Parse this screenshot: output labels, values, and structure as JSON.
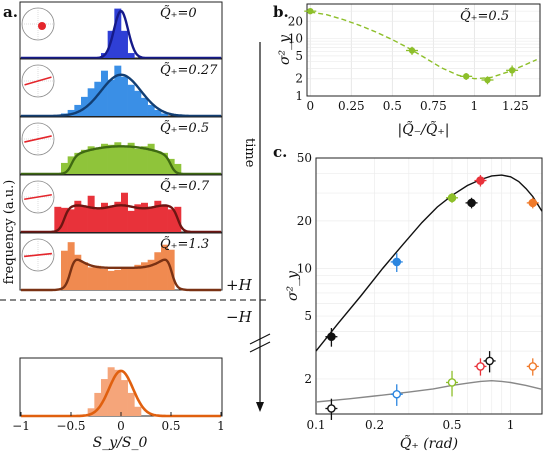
{
  "panel_labels": {
    "a": "a.",
    "b": "b.",
    "c": "c."
  },
  "panel_a": {
    "ylabel": "frequency (a.u.)",
    "xlabel": "S_y/S_0",
    "xticks": [
      "−1",
      "−0.5",
      "0",
      "0.5",
      "1"
    ],
    "time_label": "time",
    "plus_h": "+H",
    "minus_h": "−H",
    "series": [
      {
        "q": "Q̃₊=0",
        "color": "#2f3fd6",
        "curve": "#151a8a",
        "hist": [
          0,
          0,
          0,
          0,
          0,
          0,
          0,
          0,
          0,
          0,
          0,
          0,
          0.1,
          0.55,
          1.0,
          0.55,
          0.1,
          0,
          0,
          0,
          0,
          0,
          0,
          0,
          0,
          0,
          0,
          0,
          0,
          0
        ],
        "curve_type": "gauss",
        "sigma": 0.07,
        "amp": 0.95
      },
      {
        "q": "Q̃₊=0.27",
        "color": "#3a8fe6",
        "curve": "#123e73",
        "hist": [
          0,
          0,
          0,
          0,
          0,
          0,
          0.05,
          0.12,
          0.22,
          0.38,
          0.55,
          0.68,
          0.9,
          0.72,
          1.0,
          0.78,
          0.62,
          0.5,
          0.36,
          0.22,
          0.12,
          0.05,
          0,
          0,
          0,
          0,
          0,
          0,
          0,
          0
        ],
        "curve_type": "gauss",
        "sigma": 0.2,
        "amp": 0.82
      },
      {
        "q": "Q̃₊=0.5",
        "color": "#8fc43a",
        "curve": "#3f6a12",
        "hist": [
          0,
          0,
          0,
          0,
          0,
          0,
          0.22,
          0.35,
          0.42,
          0.48,
          0.55,
          0.52,
          0.6,
          0.58,
          0.63,
          0.55,
          0.62,
          0.5,
          0.55,
          0.6,
          0.45,
          0.42,
          0.3,
          0.2,
          0,
          0,
          0,
          0,
          0,
          0
        ],
        "curve_type": "dome",
        "width": 0.5,
        "amp": 0.55
      },
      {
        "q": "Q̃₊=0.7",
        "color": "#e8323a",
        "curve": "#6e1512",
        "hist": [
          0,
          0,
          0,
          0,
          0,
          0.5,
          0.48,
          0.45,
          0.62,
          0.5,
          0.72,
          0.45,
          0.58,
          0.5,
          0.6,
          0.78,
          0.42,
          0.55,
          0.58,
          0.5,
          0.62,
          0.52,
          0.45,
          0.5,
          0,
          0,
          0,
          0,
          0,
          0
        ],
        "curve_type": "flat",
        "width": 0.57,
        "amp": 0.5
      },
      {
        "q": "Q̃₊=1.3",
        "color": "#f08a50",
        "curve": "#7a3214",
        "hist": [
          0,
          0,
          0,
          0,
          0,
          0,
          0.78,
          0.95,
          0.7,
          0.55,
          0.45,
          0.48,
          0.42,
          0.38,
          0.4,
          0.45,
          0.42,
          0.5,
          0.55,
          0.6,
          0.75,
          0.9,
          0.8,
          0,
          0,
          0,
          0,
          0,
          0,
          0
        ],
        "curve_type": "horns",
        "width": 0.5,
        "amp": 0.8
      }
    ],
    "bottom": {
      "color": "#f5a57a",
      "curve": "#e0600f",
      "hist": [
        0,
        0,
        0,
        0,
        0,
        0,
        0,
        0,
        0,
        0,
        0.15,
        0.45,
        0.72,
        0.95,
        0.9,
        0.7,
        0.45,
        0.18,
        0,
        0,
        0,
        0,
        0,
        0,
        0,
        0,
        0,
        0,
        0,
        0
      ],
      "sigma": 0.12,
      "amp": 0.88
    }
  },
  "chart_data": [
    {
      "type": "scatter",
      "panel": "b",
      "annotation": "Q̃₊=0.5",
      "xlabel": "|Q̃₋/Q̃₊|",
      "ylabel": "σ²_y",
      "xlim": [
        -0.02,
        1.4
      ],
      "ylim": [
        1,
        40
      ],
      "yscale": "log",
      "grid": true,
      "xticks": [
        "0",
        "0.25",
        "0.5",
        "0.75",
        "1",
        "1.25"
      ],
      "yticks": [
        "1",
        "2",
        "5",
        "10",
        "20"
      ],
      "color": "#8dbf2a",
      "points": [
        {
          "x": 0.0,
          "y": 30.0,
          "err": 3.0
        },
        {
          "x": 0.62,
          "y": 6.2,
          "err": 1.0
        },
        {
          "x": 0.95,
          "y": 2.2,
          "err": 0.3
        },
        {
          "x": 1.08,
          "y": 1.9,
          "err": 0.3
        },
        {
          "x": 1.23,
          "y": 2.8,
          "err": 0.6
        }
      ],
      "fit": [
        [
          0,
          29
        ],
        [
          0.1,
          26
        ],
        [
          0.2,
          21.5
        ],
        [
          0.3,
          17
        ],
        [
          0.4,
          13
        ],
        [
          0.5,
          9.6
        ],
        [
          0.6,
          6.8
        ],
        [
          0.7,
          4.6
        ],
        [
          0.8,
          3.1
        ],
        [
          0.9,
          2.3
        ],
        [
          1.0,
          2.0
        ],
        [
          1.1,
          2.1
        ],
        [
          1.2,
          2.6
        ],
        [
          1.3,
          3.4
        ],
        [
          1.38,
          4.3
        ]
      ]
    },
    {
      "type": "scatter",
      "panel": "c",
      "xlabel": "Q̃₊ (rad)",
      "ylabel": "σ²_y",
      "xlim": [
        0.1,
        1.45
      ],
      "ylim": [
        1.2,
        50
      ],
      "xscale": "log",
      "yscale": "log",
      "grid": true,
      "xticks": [
        "0.1",
        "0.2",
        "0.5",
        "1"
      ],
      "yticks": [
        "2",
        "5",
        "10",
        "20",
        "50"
      ],
      "filled_points": [
        {
          "x": 0.12,
          "y": 3.7,
          "err": 0.5,
          "color": "#111111"
        },
        {
          "x": 0.26,
          "y": 11.0,
          "err": 1.5,
          "color": "#2b86e0"
        },
        {
          "x": 0.5,
          "y": 28.0,
          "err": 2.0,
          "color": "#8dbf2a"
        },
        {
          "x": 0.63,
          "y": 26.0,
          "err": 2.0,
          "color": "#111111"
        },
        {
          "x": 0.7,
          "y": 36.0,
          "err": 3.0,
          "color": "#e8323a"
        },
        {
          "x": 1.3,
          "y": 26.0,
          "err": 2.0,
          "color": "#f07a2a"
        }
      ],
      "open_points": [
        {
          "x": 0.12,
          "y": 1.3,
          "err": 0.2,
          "color": "#111111"
        },
        {
          "x": 0.26,
          "y": 1.6,
          "err": 0.25,
          "color": "#2b86e0"
        },
        {
          "x": 0.5,
          "y": 1.9,
          "err": 0.35,
          "color": "#8dbf2a"
        },
        {
          "x": 0.7,
          "y": 2.4,
          "err": 0.3,
          "color": "#e8323a"
        },
        {
          "x": 0.78,
          "y": 2.6,
          "err": 0.4,
          "color": "#111111"
        },
        {
          "x": 1.3,
          "y": 2.4,
          "err": 0.3,
          "color": "#f07a2a"
        }
      ],
      "fit_filled": [
        [
          0.1,
          3.0
        ],
        [
          0.13,
          4.5
        ],
        [
          0.17,
          6.7
        ],
        [
          0.22,
          10
        ],
        [
          0.28,
          14.2
        ],
        [
          0.35,
          19.5
        ],
        [
          0.42,
          24.5
        ],
        [
          0.5,
          29
        ],
        [
          0.6,
          33.5
        ],
        [
          0.7,
          36.5
        ],
        [
          0.8,
          38.5
        ],
        [
          0.9,
          39
        ],
        [
          1.0,
          38
        ],
        [
          1.1,
          35.5
        ],
        [
          1.2,
          32
        ],
        [
          1.3,
          28.5
        ],
        [
          1.45,
          23
        ]
      ],
      "fit_open": [
        [
          0.1,
          1.43
        ],
        [
          0.15,
          1.5
        ],
        [
          0.2,
          1.56
        ],
        [
          0.3,
          1.65
        ],
        [
          0.4,
          1.73
        ],
        [
          0.5,
          1.82
        ],
        [
          0.6,
          1.88
        ],
        [
          0.7,
          1.93
        ],
        [
          0.8,
          1.95
        ],
        [
          0.9,
          1.93
        ],
        [
          1.0,
          1.9
        ],
        [
          1.2,
          1.82
        ],
        [
          1.45,
          1.72
        ]
      ]
    }
  ]
}
